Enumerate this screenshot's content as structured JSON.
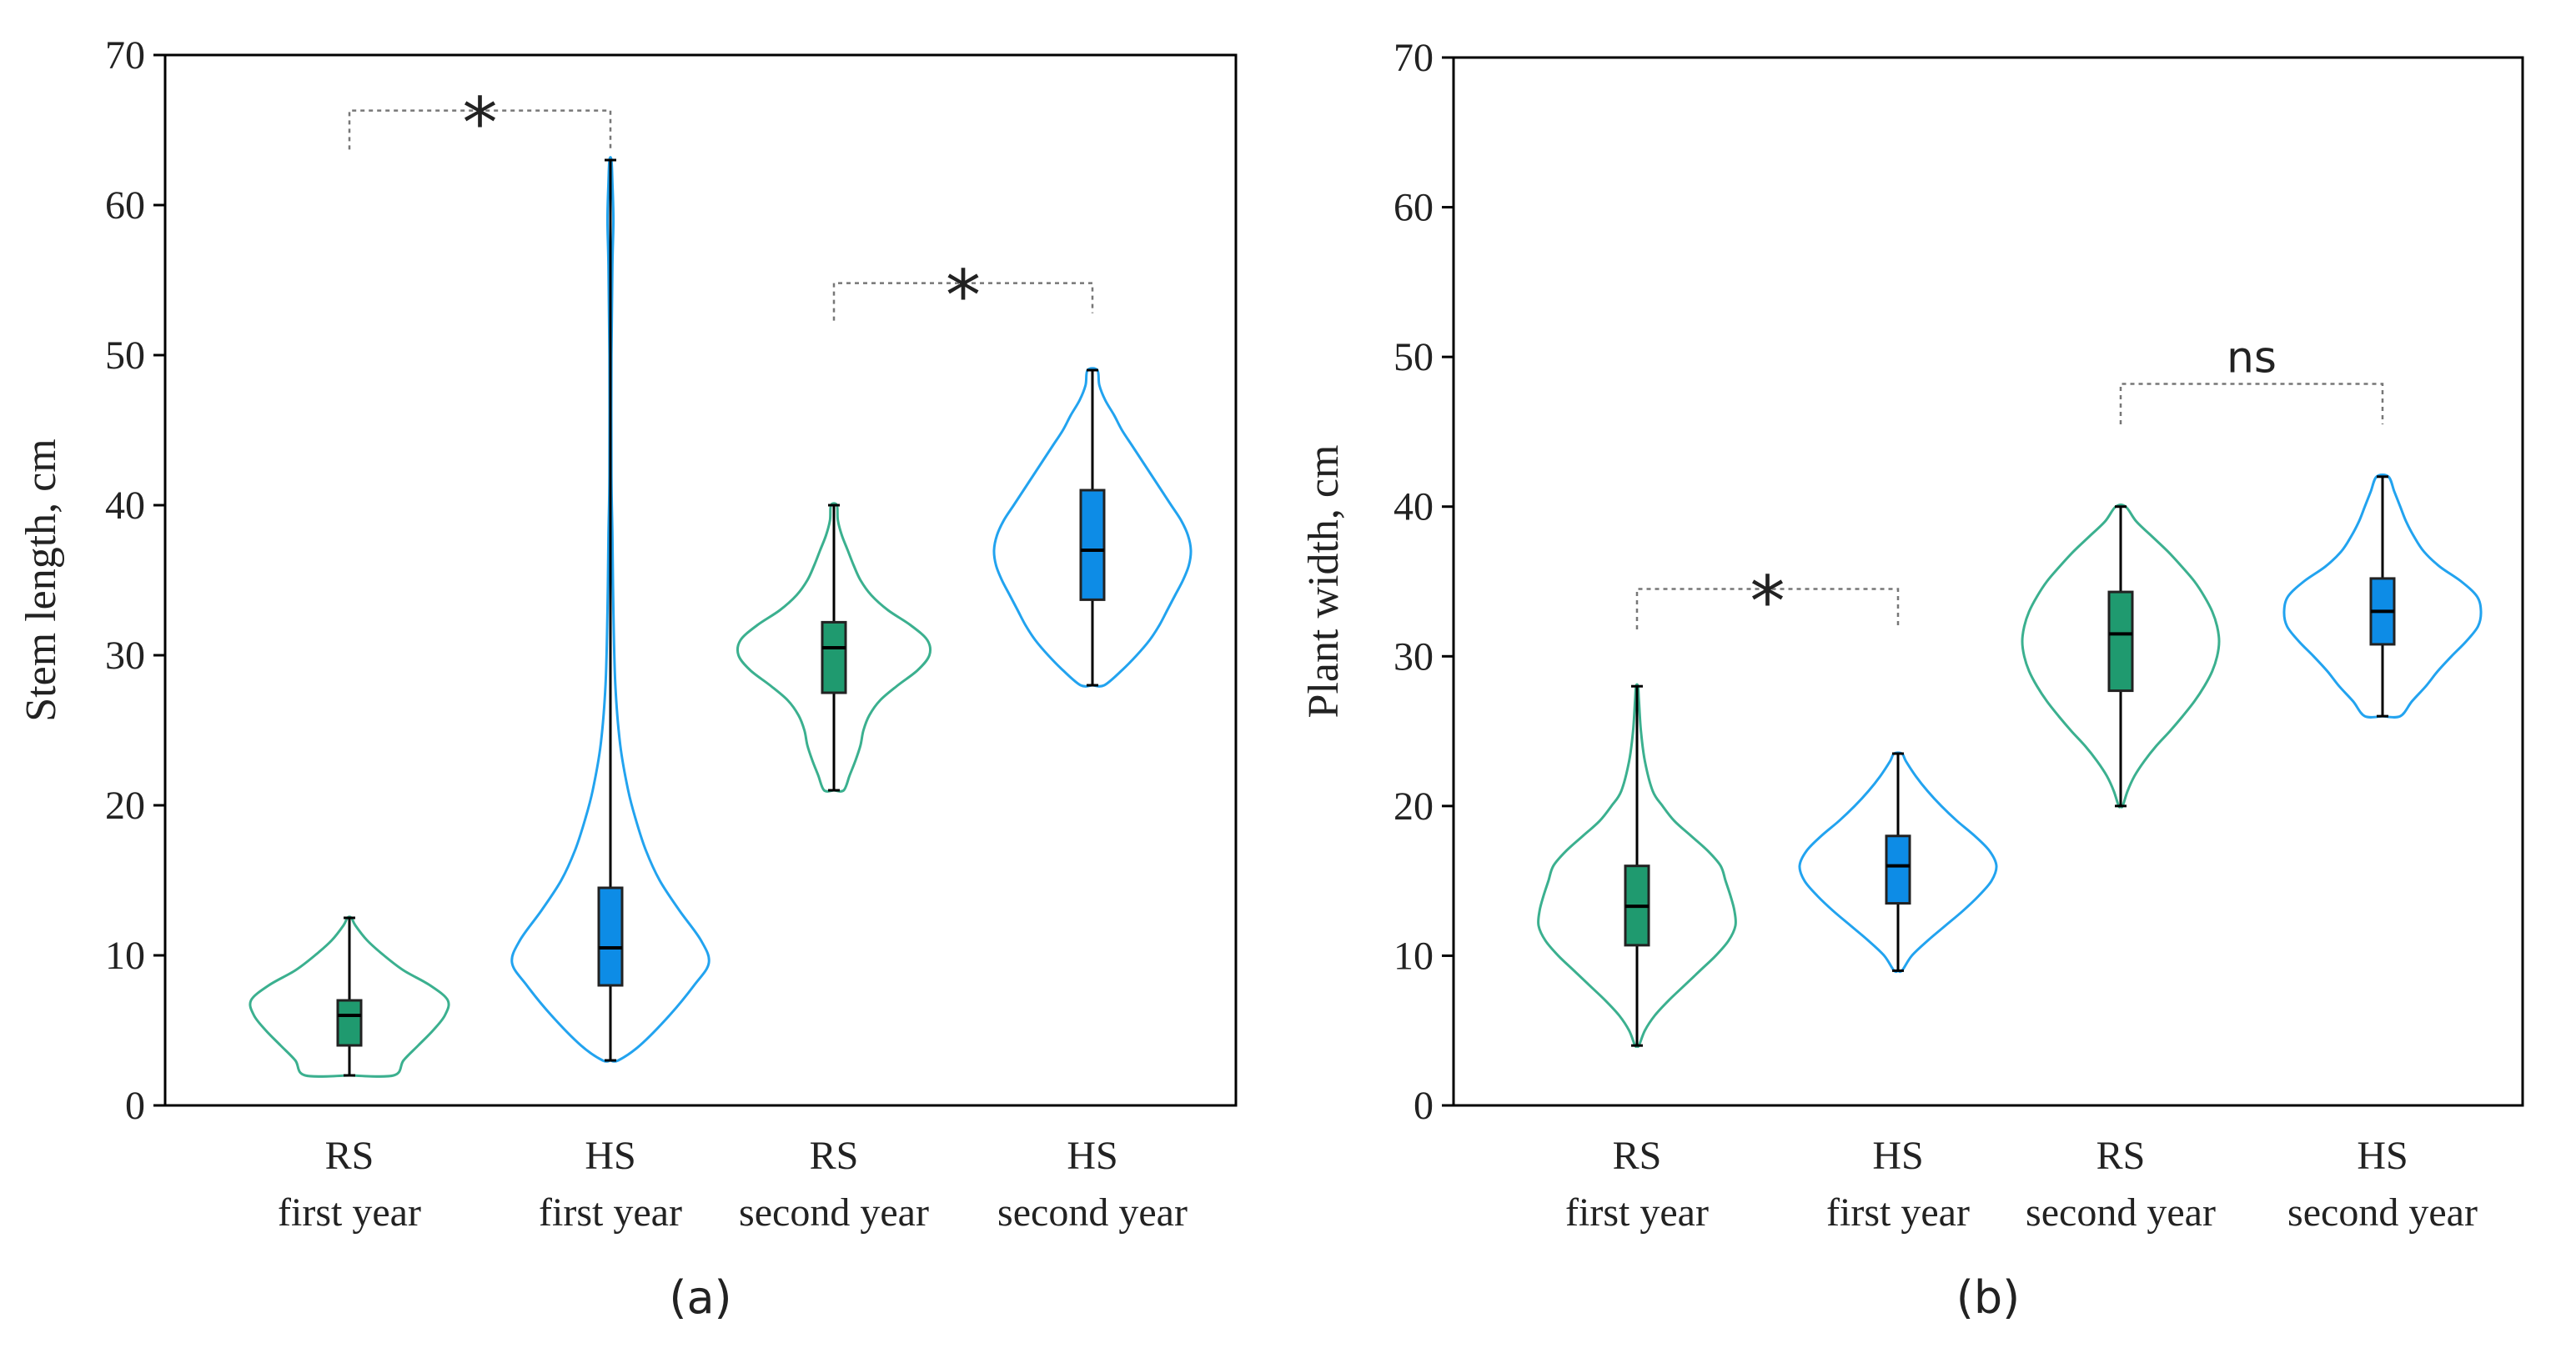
{
  "colors": {
    "rs_violin": "#3bb08f",
    "rs_box": "#1f9a6f",
    "hs_violin": "#22a3ef",
    "hs_box": "#0d8ce6"
  },
  "chart_data": [
    {
      "type": "violin",
      "panel_label": "(a)",
      "ylabel": "Stem length, cm",
      "ylim": [
        0,
        70
      ],
      "yticks": [
        0,
        10,
        20,
        30,
        40,
        50,
        60,
        70
      ],
      "groups": [
        {
          "line1": "RS",
          "line2": "first year",
          "group": "RS",
          "min": 2,
          "q1": 4,
          "median": 6,
          "q3": 7,
          "max": 12.5,
          "density": [
            [
              2,
              0.45
            ],
            [
              3,
              0.55
            ],
            [
              4,
              0.7
            ],
            [
              5,
              0.85
            ],
            [
              6,
              0.97
            ],
            [
              7,
              1.0
            ],
            [
              8,
              0.82
            ],
            [
              9,
              0.55
            ],
            [
              10,
              0.35
            ],
            [
              11,
              0.18
            ],
            [
              12,
              0.06
            ],
            [
              12.5,
              0.02
            ]
          ]
        },
        {
          "line1": "HS",
          "line2": "first year",
          "group": "HS",
          "min": 3,
          "q1": 8,
          "median": 10.5,
          "q3": 14.5,
          "max": 63,
          "density": [
            [
              3,
              0.08
            ],
            [
              4,
              0.3
            ],
            [
              6,
              0.6
            ],
            [
              8,
              0.85
            ],
            [
              9.5,
              1.0
            ],
            [
              11,
              0.92
            ],
            [
              13,
              0.7
            ],
            [
              15,
              0.5
            ],
            [
              17,
              0.36
            ],
            [
              19,
              0.26
            ],
            [
              21,
              0.18
            ],
            [
              24,
              0.1
            ],
            [
              28,
              0.05
            ],
            [
              33,
              0.03
            ],
            [
              38,
              0.02
            ],
            [
              42,
              0.01
            ],
            [
              50,
              0.01
            ],
            [
              56,
              0.02
            ],
            [
              59,
              0.03
            ],
            [
              61.5,
              0.02
            ],
            [
              63,
              0.01
            ]
          ]
        },
        {
          "line1": "RS",
          "line2": "second year",
          "group": "RS",
          "min": 21,
          "q1": 27.5,
          "median": 30.5,
          "q3": 32.2,
          "max": 40,
          "density": [
            [
              21,
              0.1
            ],
            [
              22,
              0.16
            ],
            [
              23,
              0.22
            ],
            [
              24,
              0.27
            ],
            [
              25,
              0.3
            ],
            [
              26,
              0.36
            ],
            [
              27,
              0.47
            ],
            [
              28,
              0.65
            ],
            [
              29,
              0.85
            ],
            [
              30,
              0.97
            ],
            [
              31,
              0.95
            ],
            [
              32,
              0.78
            ],
            [
              33,
              0.55
            ],
            [
              34,
              0.38
            ],
            [
              35,
              0.27
            ],
            [
              36,
              0.2
            ],
            [
              37,
              0.14
            ],
            [
              38,
              0.08
            ],
            [
              39,
              0.04
            ],
            [
              40,
              0.03
            ]
          ]
        },
        {
          "line1": "HS",
          "line2": "second year",
          "group": "HS",
          "min": 28,
          "q1": 33.7,
          "median": 37,
          "q3": 41,
          "max": 49,
          "density": [
            [
              28,
              0.12
            ],
            [
              29,
              0.3
            ],
            [
              30,
              0.45
            ],
            [
              31,
              0.58
            ],
            [
              32,
              0.68
            ],
            [
              33,
              0.76
            ],
            [
              34,
              0.84
            ],
            [
              35,
              0.92
            ],
            [
              36,
              0.98
            ],
            [
              37,
              1.0
            ],
            [
              38,
              0.97
            ],
            [
              39,
              0.9
            ],
            [
              40,
              0.8
            ],
            [
              41,
              0.7
            ],
            [
              42,
              0.6
            ],
            [
              43,
              0.5
            ],
            [
              44,
              0.4
            ],
            [
              45,
              0.3
            ],
            [
              46,
              0.22
            ],
            [
              47,
              0.13
            ],
            [
              48,
              0.07
            ],
            [
              49,
              0.05
            ]
          ]
        }
      ],
      "annotations": [
        {
          "from": 0,
          "to": 1,
          "label": "*",
          "y": 66.3,
          "drop_left": 63.7,
          "drop_right": 63.7
        },
        {
          "from": 2,
          "to": 3,
          "label": "*",
          "y": 54.8,
          "drop_left": 52.3,
          "drop_right": 52.8
        }
      ]
    },
    {
      "type": "violin",
      "panel_label": "(b)",
      "ylabel": "Plant width, cm",
      "ylim": [
        0,
        70
      ],
      "yticks": [
        0,
        10,
        20,
        30,
        40,
        50,
        60,
        70
      ],
      "groups": [
        {
          "line1": "RS",
          "line2": "first year",
          "group": "RS",
          "min": 4,
          "q1": 10.7,
          "median": 13.3,
          "q3": 16,
          "max": 28,
          "density": [
            [
              4,
              0.02
            ],
            [
              5,
              0.08
            ],
            [
              6,
              0.18
            ],
            [
              7,
              0.32
            ],
            [
              8,
              0.48
            ],
            [
              9,
              0.64
            ],
            [
              10,
              0.8
            ],
            [
              11,
              0.93
            ],
            [
              12,
              1.0
            ],
            [
              13,
              0.99
            ],
            [
              14,
              0.95
            ],
            [
              15,
              0.9
            ],
            [
              16,
              0.85
            ],
            [
              17,
              0.72
            ],
            [
              18,
              0.55
            ],
            [
              19,
              0.38
            ],
            [
              20,
              0.26
            ],
            [
              21,
              0.16
            ],
            [
              23,
              0.08
            ],
            [
              25,
              0.04
            ],
            [
              27,
              0.02
            ],
            [
              28,
              0.01
            ]
          ]
        },
        {
          "line1": "HS",
          "line2": "first year",
          "group": "HS",
          "min": 9,
          "q1": 13.5,
          "median": 16,
          "q3": 18,
          "max": 23.5,
          "density": [
            [
              9,
              0.04
            ],
            [
              10,
              0.14
            ],
            [
              11,
              0.3
            ],
            [
              12,
              0.48
            ],
            [
              13,
              0.66
            ],
            [
              14,
              0.82
            ],
            [
              15,
              0.95
            ],
            [
              16,
              1.0
            ],
            [
              17,
              0.93
            ],
            [
              18,
              0.78
            ],
            [
              19,
              0.6
            ],
            [
              20,
              0.44
            ],
            [
              21,
              0.3
            ],
            [
              22,
              0.18
            ],
            [
              23,
              0.08
            ],
            [
              23.5,
              0.04
            ]
          ]
        },
        {
          "line1": "RS",
          "line2": "second year",
          "group": "RS",
          "min": 20,
          "q1": 27.7,
          "median": 31.5,
          "q3": 34.3,
          "max": 40,
          "density": [
            [
              20,
              0.02
            ],
            [
              21,
              0.07
            ],
            [
              22,
              0.14
            ],
            [
              23,
              0.24
            ],
            [
              24,
              0.36
            ],
            [
              25,
              0.5
            ],
            [
              26,
              0.63
            ],
            [
              27,
              0.75
            ],
            [
              28,
              0.85
            ],
            [
              29,
              0.93
            ],
            [
              30,
              0.98
            ],
            [
              31,
              1.0
            ],
            [
              32,
              0.98
            ],
            [
              33,
              0.93
            ],
            [
              34,
              0.85
            ],
            [
              35,
              0.75
            ],
            [
              36,
              0.62
            ],
            [
              37,
              0.48
            ],
            [
              38,
              0.32
            ],
            [
              39,
              0.16
            ],
            [
              40,
              0.05
            ]
          ]
        },
        {
          "line1": "HS",
          "line2": "second year",
          "group": "HS",
          "min": 26,
          "q1": 30.8,
          "median": 33,
          "q3": 35.2,
          "max": 42,
          "density": [
            [
              26,
              0.18
            ],
            [
              27,
              0.3
            ],
            [
              28,
              0.44
            ],
            [
              29,
              0.56
            ],
            [
              30,
              0.7
            ],
            [
              31,
              0.85
            ],
            [
              32,
              0.97
            ],
            [
              33,
              1.0
            ],
            [
              34,
              0.96
            ],
            [
              35,
              0.8
            ],
            [
              36,
              0.58
            ],
            [
              37,
              0.42
            ],
            [
              38,
              0.32
            ],
            [
              39,
              0.24
            ],
            [
              40,
              0.18
            ],
            [
              41,
              0.12
            ],
            [
              42,
              0.06
            ]
          ]
        }
      ],
      "annotations": [
        {
          "from": 0,
          "to": 1,
          "label": "*",
          "y": 34.5,
          "drop_left": 31.8,
          "drop_right": 31.8
        },
        {
          "from": 2,
          "to": 3,
          "label": "ns",
          "y": 48.2,
          "drop_left": 45.5,
          "drop_right": 45.5
        }
      ]
    }
  ]
}
